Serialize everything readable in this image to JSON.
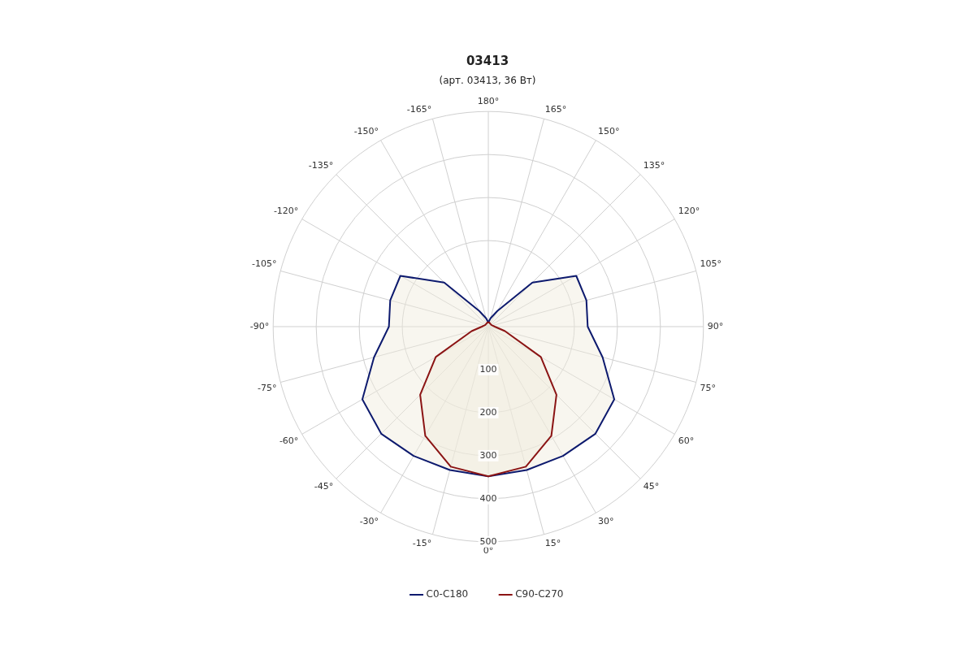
{
  "chart_data": {
    "type": "radar",
    "title": "03413",
    "subtitle": "(арт. 03413, 36 Вт)",
    "categories": [
      "180°",
      "165°",
      "150°",
      "135°",
      "120°",
      "105°",
      "90°",
      "75°",
      "60°",
      "45°",
      "30°",
      "15°",
      "0°",
      "-15°",
      "-30°",
      "-45°",
      "-60°",
      "-75°",
      "-90°",
      "-105°",
      "-120°",
      "-135°",
      "-150°",
      "-165°"
    ],
    "series": [
      {
        "name": "C0-C180",
        "color": "#0d1a6e",
        "values": [
          10,
          20,
          42,
          145,
          236,
          236,
          231,
          275,
          338,
          352,
          347,
          345,
          348,
          345,
          347,
          352,
          338,
          275,
          231,
          236,
          236,
          145,
          42,
          20
        ]
      },
      {
        "name": "C90-C270",
        "color": "#8b1414",
        "values": [
          10,
          10,
          8,
          8,
          8,
          10,
          15,
          40,
          141,
          224,
          293,
          337,
          348,
          337,
          293,
          224,
          141,
          40,
          15,
          10,
          8,
          8,
          8,
          10
        ]
      }
    ],
    "ylim": [
      0,
      500
    ],
    "yticks": [
      100,
      200,
      300,
      400,
      500
    ],
    "grid": true,
    "legend": "bottom"
  }
}
